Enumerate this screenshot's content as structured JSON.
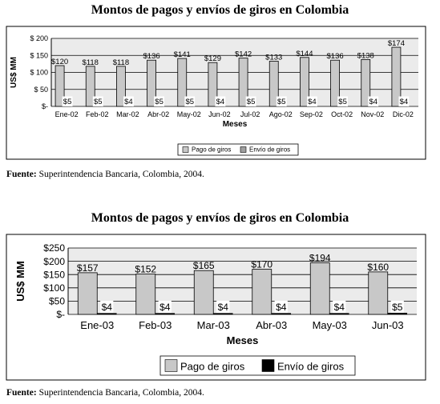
{
  "chart_data": [
    {
      "type": "bar",
      "title": "Montos de pagos y envíos de giros en Colombia",
      "xlabel": "Meses",
      "ylabel": "US$ MM",
      "ylim": [
        0,
        200
      ],
      "yticks": [
        "$-",
        "$ 50",
        "$ 100",
        "$ 150",
        "$ 200"
      ],
      "yticks_values": [
        0,
        50,
        100,
        150,
        200
      ],
      "grid": true,
      "legend_position": "bottom",
      "categories": [
        "Ene-02",
        "Feb-02",
        "Mar-02",
        "Abr-02",
        "May-02",
        "Jun-02",
        "Jul-02",
        "Ago-02",
        "Sep-02",
        "Oct-02",
        "Nov-02",
        "Dic-02"
      ],
      "series": [
        {
          "name": "Pago de giros",
          "values": [
            120,
            118,
            118,
            136,
            141,
            129,
            142,
            133,
            144,
            136,
            138,
            174
          ],
          "labels": [
            "$120",
            "$118",
            "$118",
            "$136",
            "$141",
            "$129",
            "$142",
            "$133",
            "$144",
            "$136",
            "$138",
            "$174"
          ],
          "color": "#c8c8c8"
        },
        {
          "name": "Envío de giros",
          "values": [
            5,
            5,
            4,
            5,
            5,
            4,
            5,
            5,
            4,
            5,
            4,
            4
          ],
          "labels": [
            "$5",
            "$5",
            "$4",
            "$5",
            "$5",
            "$4",
            "$5",
            "$5",
            "$4",
            "$5",
            "$4",
            "$4"
          ],
          "color": "#a0a0a0"
        }
      ],
      "source_label": "Fuente:",
      "source_text": " Superintendencia Bancaria, Colombia, 2004."
    },
    {
      "type": "bar",
      "title": "Montos de pagos y envíos de giros en Colombia",
      "xlabel": "Meses",
      "ylabel": "US$ MM",
      "ylim": [
        0,
        250
      ],
      "yticks": [
        "$-",
        "$50",
        "$100",
        "$150",
        "$200",
        "$250"
      ],
      "yticks_values": [
        0,
        50,
        100,
        150,
        200,
        250
      ],
      "grid": true,
      "legend_position": "bottom",
      "categories": [
        "Ene-03",
        "Feb-03",
        "Mar-03",
        "Abr-03",
        "May-03",
        "Jun-03"
      ],
      "series": [
        {
          "name": "Pago de giros",
          "values": [
            157,
            152,
            165,
            170,
            194,
            160
          ],
          "labels": [
            "$157",
            "$152",
            "$165",
            "$170",
            "$194",
            "$160"
          ],
          "color": "#c8c8c8"
        },
        {
          "name": "Envío de giros",
          "values": [
            4,
            4,
            4,
            4,
            4,
            5
          ],
          "labels": [
            "$4",
            "$4",
            "$4",
            "$4",
            "$4",
            "$5"
          ],
          "color": "#000000"
        }
      ],
      "source_label": "Fuente:",
      "source_text": " Superintendencia Bancaria, Colombia, 2004."
    }
  ]
}
